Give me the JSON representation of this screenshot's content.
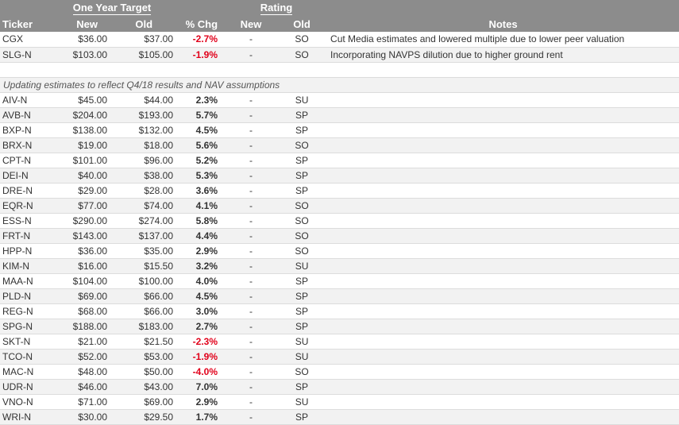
{
  "header": {
    "group_target": "One Year Target",
    "group_rating": "Rating",
    "col_ticker": "Ticker",
    "col_new": "New",
    "col_old": "Old",
    "col_chg": "% Chg",
    "col_rating_new": "New",
    "col_rating_old": "Old",
    "col_notes": "Notes"
  },
  "top_rows": [
    {
      "ticker": "CGX",
      "new": "$36.00",
      "old": "$37.00",
      "chg": "-2.7%",
      "negative": true,
      "rating_new": "-",
      "rating_old": "SO",
      "notes": "Cut Media estimates and lowered multiple due to lower peer valuation"
    },
    {
      "ticker": "SLG-N",
      "new": "$103.00",
      "old": "$105.00",
      "chg": "-1.9%",
      "negative": true,
      "rating_new": "-",
      "rating_old": "SO",
      "notes": "Incorporating NAVPS dilution due to higher ground rent"
    }
  ],
  "section_title": "Updating estimates to reflect Q4/18 results and NAV assumptions",
  "rows": [
    {
      "ticker": "AIV-N",
      "new": "$45.00",
      "old": "$44.00",
      "chg": "2.3%",
      "negative": false,
      "rating_new": "-",
      "rating_old": "SU"
    },
    {
      "ticker": "AVB-N",
      "new": "$204.00",
      "old": "$193.00",
      "chg": "5.7%",
      "negative": false,
      "rating_new": "-",
      "rating_old": "SP"
    },
    {
      "ticker": "BXP-N",
      "new": "$138.00",
      "old": "$132.00",
      "chg": "4.5%",
      "negative": false,
      "rating_new": "-",
      "rating_old": "SP"
    },
    {
      "ticker": "BRX-N",
      "new": "$19.00",
      "old": "$18.00",
      "chg": "5.6%",
      "negative": false,
      "rating_new": "-",
      "rating_old": "SO"
    },
    {
      "ticker": "CPT-N",
      "new": "$101.00",
      "old": "$96.00",
      "chg": "5.2%",
      "negative": false,
      "rating_new": "-",
      "rating_old": "SP"
    },
    {
      "ticker": "DEI-N",
      "new": "$40.00",
      "old": "$38.00",
      "chg": "5.3%",
      "negative": false,
      "rating_new": "-",
      "rating_old": "SP"
    },
    {
      "ticker": "DRE-N",
      "new": "$29.00",
      "old": "$28.00",
      "chg": "3.6%",
      "negative": false,
      "rating_new": "-",
      "rating_old": "SP"
    },
    {
      "ticker": "EQR-N",
      "new": "$77.00",
      "old": "$74.00",
      "chg": "4.1%",
      "negative": false,
      "rating_new": "-",
      "rating_old": "SO"
    },
    {
      "ticker": "ESS-N",
      "new": "$290.00",
      "old": "$274.00",
      "chg": "5.8%",
      "negative": false,
      "rating_new": "-",
      "rating_old": "SO"
    },
    {
      "ticker": "FRT-N",
      "new": "$143.00",
      "old": "$137.00",
      "chg": "4.4%",
      "negative": false,
      "rating_new": "-",
      "rating_old": "SO"
    },
    {
      "ticker": "HPP-N",
      "new": "$36.00",
      "old": "$35.00",
      "chg": "2.9%",
      "negative": false,
      "rating_new": "-",
      "rating_old": "SO"
    },
    {
      "ticker": "KIM-N",
      "new": "$16.00",
      "old": "$15.50",
      "chg": "3.2%",
      "negative": false,
      "rating_new": "-",
      "rating_old": "SU"
    },
    {
      "ticker": "MAA-N",
      "new": "$104.00",
      "old": "$100.00",
      "chg": "4.0%",
      "negative": false,
      "rating_new": "-",
      "rating_old": "SP"
    },
    {
      "ticker": "PLD-N",
      "new": "$69.00",
      "old": "$66.00",
      "chg": "4.5%",
      "negative": false,
      "rating_new": "-",
      "rating_old": "SP"
    },
    {
      "ticker": "REG-N",
      "new": "$68.00",
      "old": "$66.00",
      "chg": "3.0%",
      "negative": false,
      "rating_new": "-",
      "rating_old": "SP"
    },
    {
      "ticker": "SPG-N",
      "new": "$188.00",
      "old": "$183.00",
      "chg": "2.7%",
      "negative": false,
      "rating_new": "-",
      "rating_old": "SP"
    },
    {
      "ticker": "SKT-N",
      "new": "$21.00",
      "old": "$21.50",
      "chg": "-2.3%",
      "negative": true,
      "rating_new": "-",
      "rating_old": "SU"
    },
    {
      "ticker": "TCO-N",
      "new": "$52.00",
      "old": "$53.00",
      "chg": "-1.9%",
      "negative": true,
      "rating_new": "-",
      "rating_old": "SU"
    },
    {
      "ticker": "MAC-N",
      "new": "$48.00",
      "old": "$50.00",
      "chg": "-4.0%",
      "negative": true,
      "rating_new": "-",
      "rating_old": "SO"
    },
    {
      "ticker": "UDR-N",
      "new": "$46.00",
      "old": "$43.00",
      "chg": "7.0%",
      "negative": false,
      "rating_new": "-",
      "rating_old": "SP"
    },
    {
      "ticker": "VNO-N",
      "new": "$71.00",
      "old": "$69.00",
      "chg": "2.9%",
      "negative": false,
      "rating_new": "-",
      "rating_old": "SU"
    },
    {
      "ticker": "WRI-N",
      "new": "$30.00",
      "old": "$29.50",
      "chg": "1.7%",
      "negative": false,
      "rating_new": "-",
      "rating_old": "SP"
    }
  ]
}
